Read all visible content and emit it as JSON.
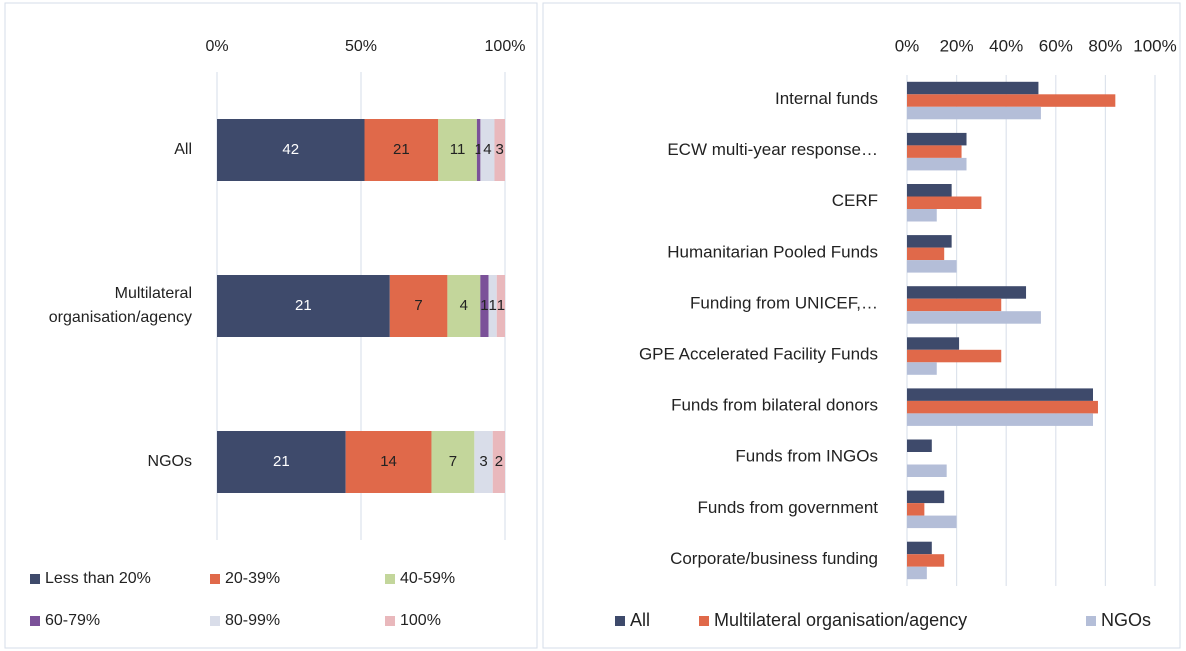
{
  "chart_data": [
    {
      "type": "bar",
      "orientation": "horizontal",
      "stacked": true,
      "normalize": true,
      "categories": [
        "All",
        "Multilateral organisation/agency",
        "NGOs"
      ],
      "series": [
        {
          "name": "Less than 20%",
          "color": "#3e4a6b",
          "values": [
            42,
            21,
            21
          ]
        },
        {
          "name": "20-39%",
          "color": "#e0694a",
          "values": [
            21,
            7,
            14
          ]
        },
        {
          "name": "40-59%",
          "color": "#c3d69b",
          "values": [
            11,
            4,
            7
          ]
        },
        {
          "name": "60-79%",
          "color": "#7b5199",
          "values": [
            1,
            1,
            0
          ]
        },
        {
          "name": "80-99%",
          "color": "#d9dde9",
          "values": [
            4,
            1,
            3
          ]
        },
        {
          "name": "100%",
          "color": "#e9b8bc",
          "values": [
            3,
            1,
            2
          ]
        }
      ],
      "xlim": [
        0,
        100
      ],
      "xticks": [
        {
          "value": 0,
          "label": "0%"
        },
        {
          "value": 50,
          "label": "50%"
        },
        {
          "value": 100,
          "label": "100%"
        }
      ],
      "grid": true,
      "legend": "bottom"
    },
    {
      "type": "bar",
      "orientation": "horizontal",
      "stacked": false,
      "categories": [
        "Internal funds",
        "ECW multi-year response…",
        "CERF",
        "Humanitarian Pooled Funds",
        "Funding from UNICEF,…",
        "GPE Accelerated Facility Funds",
        "Funds from bilateral donors",
        "Funds from INGOs",
        "Funds from government",
        "Corporate/business funding"
      ],
      "series": [
        {
          "name": "All",
          "color": "#3e4a6b",
          "values": [
            53,
            24,
            18,
            18,
            48,
            21,
            75,
            10,
            15,
            10
          ]
        },
        {
          "name": "Multilateral organisation/agency",
          "color": "#e0694a",
          "values": [
            84,
            22,
            30,
            15,
            38,
            38,
            77,
            0,
            7,
            15
          ]
        },
        {
          "name": "NGOs",
          "color": "#b4bed8",
          "values": [
            54,
            24,
            12,
            20,
            54,
            12,
            75,
            16,
            20,
            8
          ]
        }
      ],
      "xlim": [
        0,
        100
      ],
      "xticks": [
        {
          "value": 0,
          "label": "0%"
        },
        {
          "value": 20,
          "label": "20%"
        },
        {
          "value": 40,
          "label": "40%"
        },
        {
          "value": 60,
          "label": "60%"
        },
        {
          "value": 80,
          "label": "80%"
        },
        {
          "value": 100,
          "label": "100%"
        }
      ],
      "grid": true,
      "legend": "bottom"
    }
  ]
}
